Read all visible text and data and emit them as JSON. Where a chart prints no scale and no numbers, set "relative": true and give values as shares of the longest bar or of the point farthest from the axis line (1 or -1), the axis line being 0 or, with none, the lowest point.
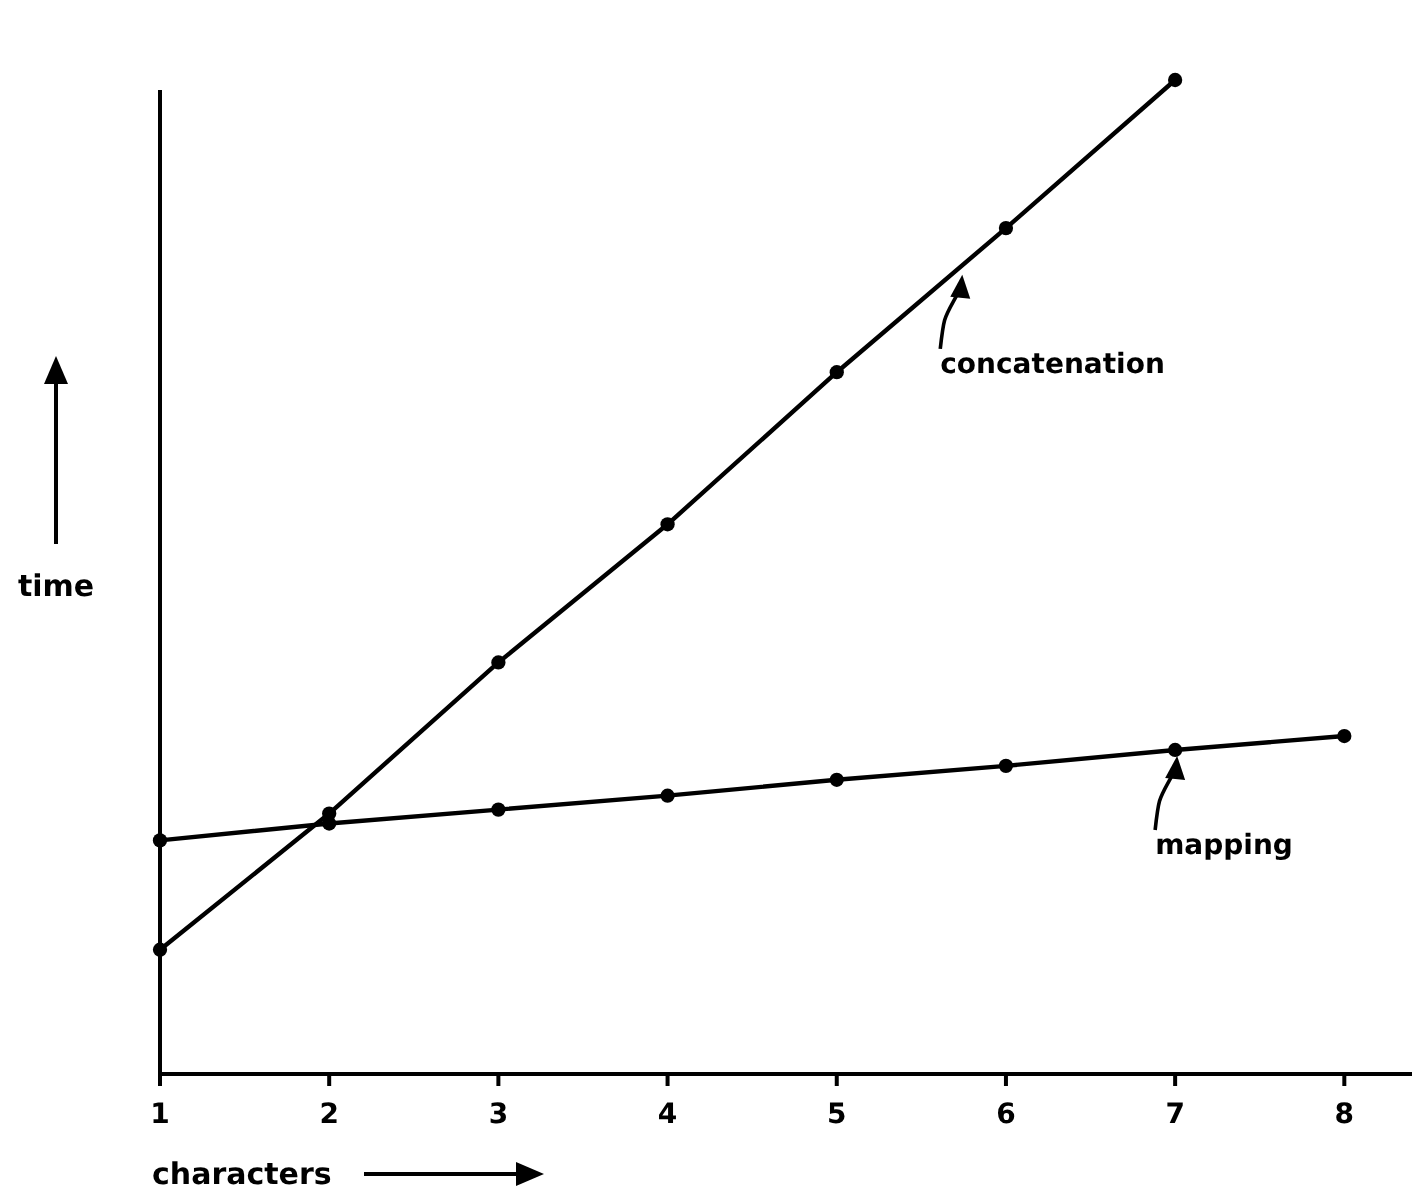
{
  "chart_data": {
    "type": "line",
    "relative": true,
    "xlabel": "characters",
    "ylabel": "time",
    "x": [
      1,
      2,
      3,
      4,
      5,
      6,
      7,
      8
    ],
    "xlim": [
      1,
      8.4
    ],
    "xticks": [
      1,
      2,
      3,
      4,
      5,
      6,
      7,
      8
    ],
    "series": [
      {
        "color": "#000000",
        "x": [
          1,
          2,
          3,
          4,
          5,
          6,
          7
        ],
        "values": [
          0.125,
          0.262,
          0.414,
          0.553,
          0.706,
          0.851,
          1
        ]
      },
      {
        "color": "#000000",
        "values": [
          0.235,
          0.252,
          0.266,
          0.28,
          0.296,
          0.31,
          0.326,
          0.34
        ]
      }
    ],
    "annotations": [
      {
        "text": "concatenation",
        "x": 5.73,
        "y": 0.81
      },
      {
        "text": "mapping",
        "x": 7,
        "y": 0.326
      }
    ],
    "marker": "circle",
    "line_style": "solid",
    "grid": false
  }
}
